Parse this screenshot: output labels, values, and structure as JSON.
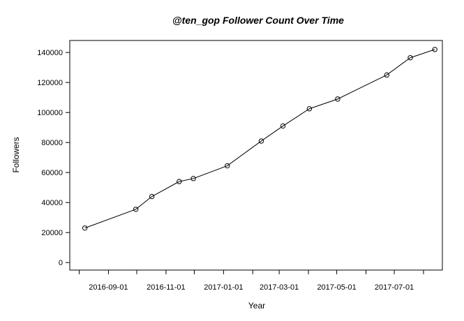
{
  "chart_data": {
    "type": "line",
    "title": "@ten_gop Follower Count Over Time",
    "xlabel": "Year",
    "ylabel": "Followers",
    "grid": false,
    "x_ticks": [
      "2016-09-01",
      "2016-11-01",
      "2017-01-01",
      "2017-03-01",
      "2017-05-01",
      "2017-07-01"
    ],
    "y_ticks": [
      0,
      20000,
      40000,
      60000,
      80000,
      100000,
      120000,
      140000
    ],
    "xlim": [
      "2016-07-22",
      "2017-08-21"
    ],
    "ylim": [
      -5000,
      148000
    ],
    "series": [
      {
        "marker": "open-circle",
        "color": "#000000",
        "points": [
          {
            "x": "2016-08-07",
            "y": 23000
          },
          {
            "x": "2016-09-30",
            "y": 35500
          },
          {
            "x": "2016-10-17",
            "y": 44000
          },
          {
            "x": "2016-11-15",
            "y": 54000
          },
          {
            "x": "2016-11-30",
            "y": 56000
          },
          {
            "x": "2017-01-05",
            "y": 64500
          },
          {
            "x": "2017-02-10",
            "y": 81000
          },
          {
            "x": "2017-03-05",
            "y": 91000
          },
          {
            "x": "2017-04-02",
            "y": 102500
          },
          {
            "x": "2017-05-02",
            "y": 109000
          },
          {
            "x": "2017-06-23",
            "y": 125000
          },
          {
            "x": "2017-07-18",
            "y": 136500
          },
          {
            "x": "2017-08-13",
            "y": 142000
          }
        ]
      }
    ]
  }
}
